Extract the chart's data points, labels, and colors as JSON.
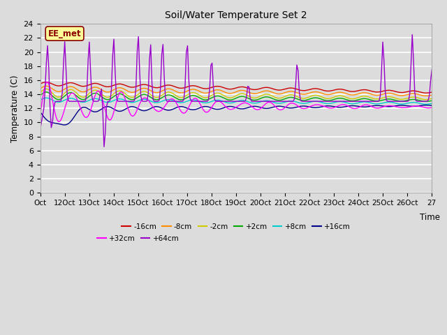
{
  "title": "Soil/Water Temperature Set 2",
  "xlabel": "Time",
  "ylabel": "Temperature (C)",
  "ylim": [
    0,
    24
  ],
  "yticks": [
    0,
    2,
    4,
    6,
    8,
    10,
    12,
    14,
    16,
    18,
    20,
    22,
    24
  ],
  "xtick_labels": [
    "Oct",
    "12Oct",
    "13Oct",
    "14Oct",
    "15Oct",
    "16Oct",
    "17Oct",
    "18Oct",
    "19Oct",
    "20Oct",
    "21Oct",
    "22Oct",
    "23Oct",
    "24Oct",
    "25Oct",
    "26Oct",
    "27"
  ],
  "annotation_text": "EE_met",
  "annotation_color": "#8B0000",
  "annotation_bg": "#FFFF99",
  "annotation_border": "#8B0000",
  "series": [
    {
      "label": "-16cm",
      "color": "#CC0000"
    },
    {
      "label": "-8cm",
      "color": "#FF8C00"
    },
    {
      "label": "-2cm",
      "color": "#CCCC00"
    },
    {
      "label": "+2cm",
      "color": "#00AA00"
    },
    {
      "label": "+8cm",
      "color": "#00CCCC"
    },
    {
      "label": "+16cm",
      "color": "#000088"
    },
    {
      "label": "+32cm",
      "color": "#FF00FF"
    },
    {
      "label": "+64cm",
      "color": "#9900CC"
    }
  ],
  "bg_color": "#DCDCDC",
  "plot_bg_color": "#DCDCDC",
  "grid_color": "#FFFFFF",
  "figsize": [
    6.4,
    4.8
  ],
  "dpi": 100
}
